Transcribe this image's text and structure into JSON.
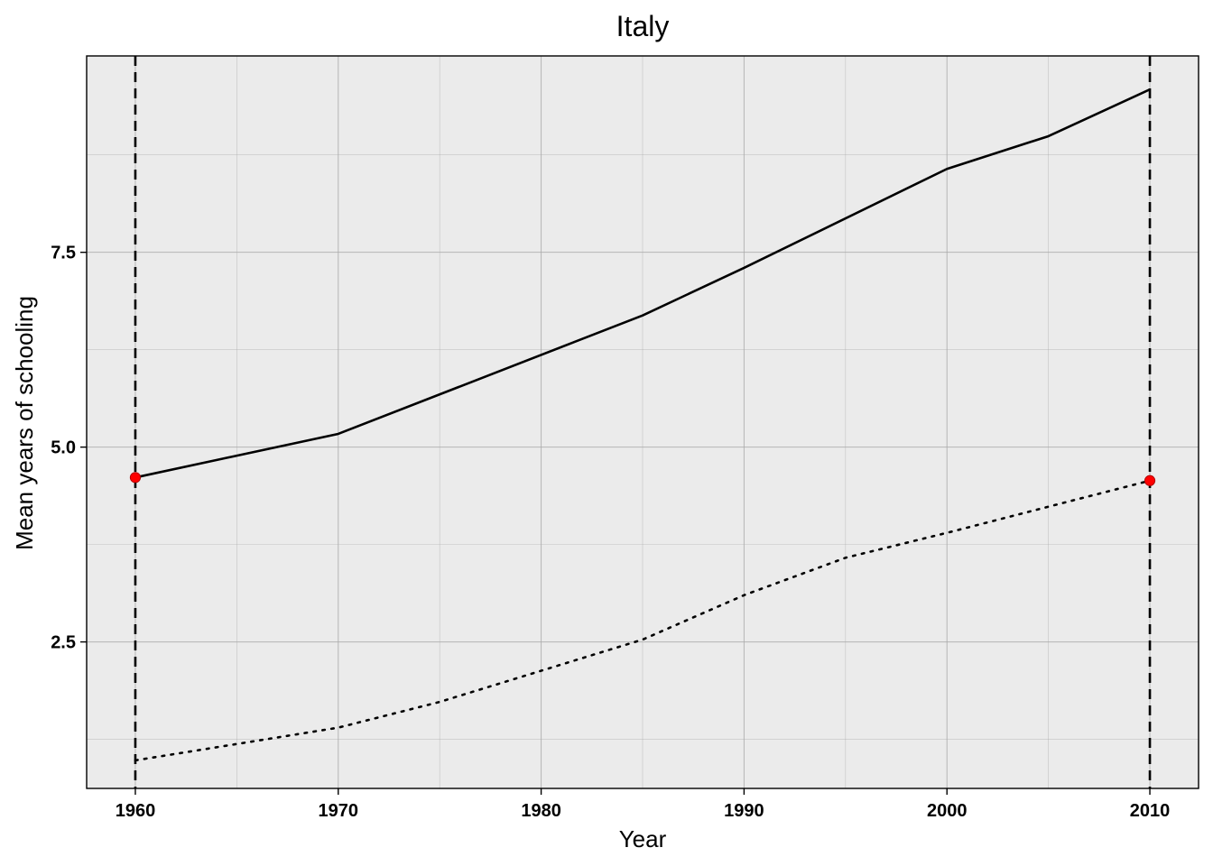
{
  "chart_data": {
    "type": "line",
    "title": "Italy",
    "xlabel": "Year",
    "ylabel": "Mean years of schooling",
    "xlim": [
      1957.6,
      2012.4
    ],
    "ylim": [
      0.62,
      10.02
    ],
    "x_ticks": [
      1960,
      1970,
      1980,
      1990,
      2000,
      2010
    ],
    "y_ticks": [
      2.5,
      5.0,
      7.5
    ],
    "x_tick_labels": [
      "1960",
      "1970",
      "1980",
      "1990",
      "2000",
      "2010"
    ],
    "y_tick_labels": [
      "2.5",
      "5.0",
      "7.5"
    ],
    "x_minor_grid": [
      1965,
      1975,
      1985,
      1995,
      2005
    ],
    "y_minor_grid": [
      1.25,
      3.75,
      6.25,
      8.75
    ],
    "grid": true,
    "vertical_reference_lines": [
      1960,
      2010
    ],
    "series": [
      {
        "style": "solid",
        "x": [
          1960,
          1970,
          1985,
          1990,
          2000,
          2005,
          2010
        ],
        "y": [
          4.61,
          5.17,
          6.69,
          7.3,
          8.57,
          8.99,
          9.59
        ]
      },
      {
        "style": "dotted",
        "x": [
          1960,
          1970,
          1975,
          1985,
          1990,
          1995,
          2000,
          2010
        ],
        "y": [
          0.98,
          1.4,
          1.73,
          2.53,
          3.1,
          3.58,
          3.9,
          4.57
        ]
      }
    ],
    "highlight_points": [
      {
        "x": 1960,
        "y": 4.61
      },
      {
        "x": 2010,
        "y": 4.57
      }
    ],
    "colors": {
      "panel_background": "#ebebeb",
      "grid_line": "#a9a9a9",
      "series_line": "#000000",
      "highlight_point": "#ff0000"
    }
  }
}
